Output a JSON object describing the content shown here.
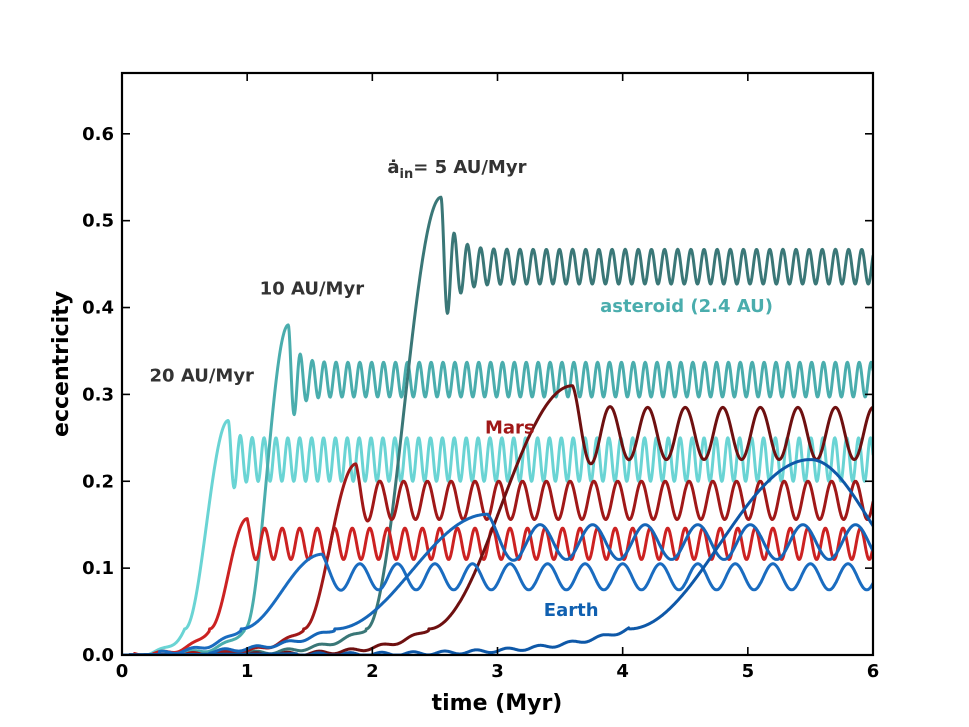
{
  "chart_data": {
    "type": "line",
    "title": "",
    "xlabel": "time (Myr)",
    "ylabel": "eccentricity",
    "xlim": [
      0,
      6
    ],
    "ylim": [
      0,
      0.67
    ],
    "xticks": [
      0,
      1,
      2,
      3,
      4,
      5,
      6
    ],
    "xtick_labels": [
      "0",
      "1",
      "2",
      "3",
      "4",
      "5",
      "6"
    ],
    "yticks": [
      0.0,
      0.1,
      0.2,
      0.3,
      0.4,
      0.5,
      0.6
    ],
    "ytick_labels": [
      "0.0",
      "0.1",
      "0.2",
      "0.3",
      "0.4",
      "0.5",
      "0.6"
    ],
    "grid": false,
    "annotations": [
      {
        "text": "20 AU/Myr",
        "x": 0.22,
        "y": 0.315,
        "color": "#333333"
      },
      {
        "text": "10 AU/Myr",
        "x": 1.1,
        "y": 0.415,
        "color": "#333333"
      },
      {
        "text": "= 5 AU/Myr",
        "prefix": "ȧ",
        "subscript": "in",
        "x": 2.12,
        "y": 0.555,
        "color": "#333333"
      },
      {
        "text": "asteroid (2.4 AU)",
        "x": 3.82,
        "y": 0.395,
        "color": "#4aadad"
      },
      {
        "text": "Mars",
        "x": 2.9,
        "y": 0.255,
        "color": "#a01818"
      },
      {
        "text": "Earth",
        "x": 3.37,
        "y": 0.045,
        "color": "#1060b0"
      }
    ],
    "series": [
      {
        "name": "asteroid 20 AU/Myr",
        "color": "#6ad4d4",
        "t0": 0.5,
        "w": 0.35,
        "rise_start": 0.18,
        "rise_scale": 0.11,
        "peak": 0.27,
        "mean": 0.225,
        "osc_amp": 0.025,
        "osc_damp": 0.05,
        "period": 0.095
      },
      {
        "name": "asteroid 10 AU/Myr",
        "color": "#4aadad",
        "t0": 0.98,
        "w": 0.35,
        "rise_start": 0.35,
        "rise_scale": 0.18,
        "peak": 0.38,
        "mean": 0.317,
        "osc_amp": 0.02,
        "osc_damp": 0.065,
        "period": 0.095
      },
      {
        "name": "asteroid 5 AU/Myr",
        "color": "#3a7777",
        "t0": 1.95,
        "w": 0.6,
        "rise_start": 0.6,
        "rise_scale": 0.35,
        "peak": 0.527,
        "mean": 0.447,
        "osc_amp": 0.02,
        "osc_damp": 0.085,
        "period": 0.105
      },
      {
        "name": "Mars 20 AU/Myr",
        "color": "#cc2222",
        "t0": 0.7,
        "w": 0.3,
        "rise_start": 0.1,
        "rise_scale": 0.15,
        "peak": 0.157,
        "mean": 0.128,
        "osc_amp": 0.018,
        "osc_damp": 0.012,
        "period": 0.14
      },
      {
        "name": "Mars 10 AU/Myr",
        "color": "#a01818",
        "t0": 1.45,
        "w": 0.42,
        "rise_start": 0.4,
        "rise_scale": 0.25,
        "peak": 0.22,
        "mean": 0.178,
        "osc_amp": 0.022,
        "osc_damp": 0.02,
        "period": 0.19
      },
      {
        "name": "Mars 5 AU/Myr",
        "color": "#6e1010",
        "t0": 2.45,
        "w": 1.15,
        "rise_start": 0.9,
        "rise_scale": 0.35,
        "peak": 0.31,
        "mean": 0.255,
        "osc_amp": 0.03,
        "osc_damp": 0.03,
        "period": 0.3
      },
      {
        "name": "Earth 20 AU/Myr",
        "color": "#1a6cc0",
        "t0": 0.95,
        "w": 0.65,
        "rise_start": 0.3,
        "rise_scale": 0.25,
        "peak": 0.116,
        "mean": 0.09,
        "osc_amp": 0.015,
        "osc_damp": 0.015,
        "period": 0.3
      },
      {
        "name": "Earth 10 AU/Myr",
        "color": "#1666b8",
        "t0": 1.7,
        "w": 1.22,
        "rise_start": 0.7,
        "rise_scale": 0.5,
        "peak": 0.162,
        "mean": 0.13,
        "osc_amp": 0.02,
        "osc_damp": 0.02,
        "period": 0.42
      },
      {
        "name": "Earth 5 AU/Myr",
        "color": "#0e58a8",
        "t0": 4.05,
        "w": 1.45,
        "rise_start": 1.4,
        "rise_scale": 0.6,
        "peak": 0.225,
        "mean": 0.16,
        "osc_amp": 0.0,
        "osc_damp": 0.0,
        "period": 0.5
      }
    ]
  }
}
